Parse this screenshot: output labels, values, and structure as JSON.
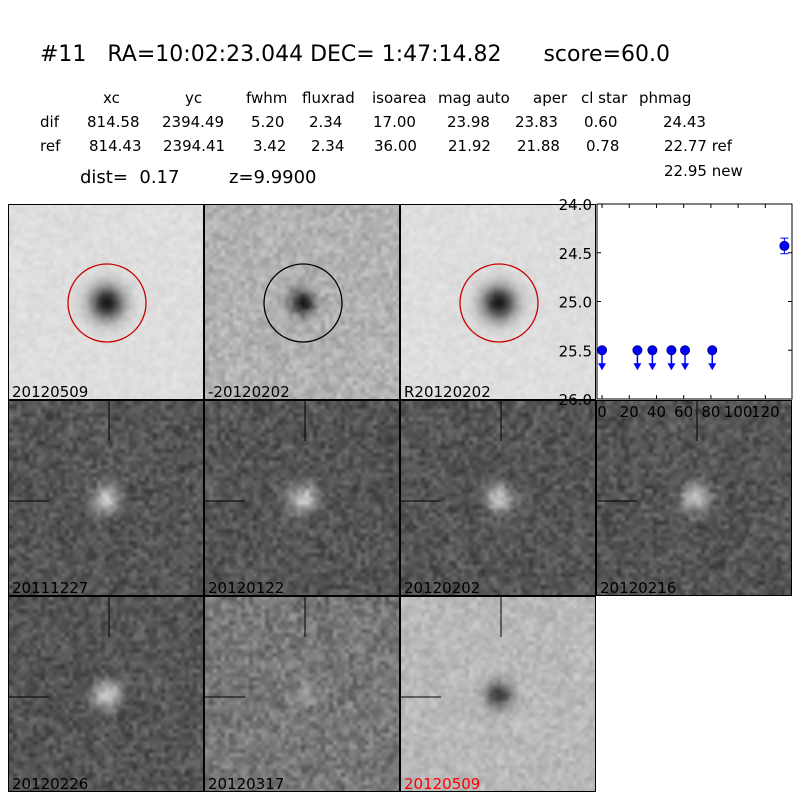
{
  "header": {
    "title": "#11   RA=10:02:23.044 DEC= 1:47:14.82      score=60.0",
    "columns": [
      "xc",
      "yc",
      "fwhm",
      "fluxrad",
      "isoarea",
      "mag auto",
      "aper",
      "cl star",
      "phmag"
    ],
    "rows": [
      {
        "label": "dif",
        "values": [
          "814.58",
          "2394.49",
          "5.20",
          "2.34",
          "17.00",
          "23.98",
          "23.83",
          "0.60",
          "24.43"
        ]
      },
      {
        "label": "ref",
        "values": [
          "814.43",
          "2394.41",
          "3.42",
          "2.34",
          "36.00",
          "21.92",
          "21.88",
          "0.78",
          "22.77 ref"
        ]
      }
    ],
    "phmag_new": "22.95 new",
    "dist": "dist=  0.17",
    "z": "z=9.9900"
  },
  "stamps": [
    {
      "label": "20120509",
      "label_color": "#000000",
      "style": "light",
      "circle": "#cc0000"
    },
    {
      "label": "-20120202",
      "label_color": "#000000",
      "style": "mid",
      "circle": "#000000"
    },
    {
      "label": "R20120202",
      "label_color": "#000000",
      "style": "light",
      "circle": "#cc0000"
    },
    {
      "label": "20111227",
      "label_color": "#000000",
      "style": "dark"
    },
    {
      "label": "20120122",
      "label_color": "#000000",
      "style": "dark"
    },
    {
      "label": "20120202",
      "label_color": "#000000",
      "style": "dark"
    },
    {
      "label": "20120216",
      "label_color": "#000000",
      "style": "dark"
    },
    {
      "label": "20120226",
      "label_color": "#000000",
      "style": "dark"
    },
    {
      "label": "20120317",
      "label_color": "#000000",
      "style": "darknoisy"
    },
    {
      "label": "20120509",
      "label_color": "#ff0000",
      "style": "lightneg"
    }
  ],
  "chart_data": {
    "type": "scatter",
    "title": "",
    "xlabel": "",
    "ylabel": "",
    "xlim": [
      -3.7,
      139.6
    ],
    "ylim": [
      26.0,
      24.0
    ],
    "y_inverted": true,
    "xticks": [
      "0",
      "20",
      "40",
      "60",
      "80",
      "100",
      "120"
    ],
    "yticks": [
      "24.0",
      "24.5",
      "25.0",
      "25.5",
      "26.0"
    ],
    "color": "#0000ff",
    "upper_limits": {
      "x": [
        0,
        26,
        37,
        51,
        61,
        81
      ],
      "y": [
        25.5,
        25.5,
        25.5,
        25.5,
        25.5,
        25.5
      ]
    },
    "detections": {
      "x": [
        134
      ],
      "y": [
        24.43
      ],
      "yerr": [
        0.08
      ]
    }
  }
}
